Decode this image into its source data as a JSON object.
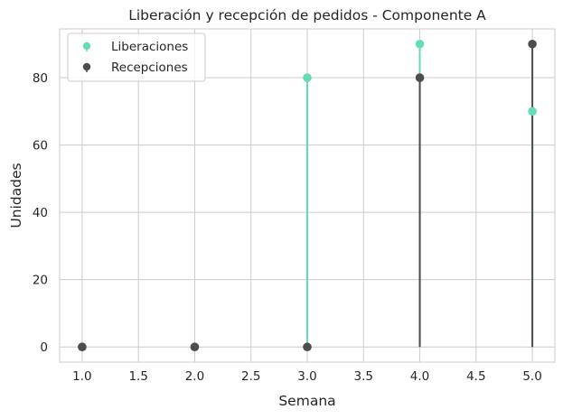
{
  "chart_data": {
    "type": "stem",
    "title": "Liberación y recepción de pedidos - Componente A",
    "xlabel": "Semana",
    "ylabel": "Unidades",
    "xlim": [
      0.8,
      5.2
    ],
    "ylim": [
      -4.5,
      94.5
    ],
    "xticks": [
      1.0,
      1.5,
      2.0,
      2.5,
      3.0,
      3.5,
      4.0,
      4.5,
      5.0
    ],
    "xtick_labels": [
      "1.0",
      "1.5",
      "2.0",
      "2.5",
      "3.0",
      "3.5",
      "4.0",
      "4.5",
      "5.0"
    ],
    "yticks": [
      0,
      20,
      40,
      60,
      80
    ],
    "ytick_labels": [
      "0",
      "20",
      "40",
      "60",
      "80"
    ],
    "grid": true,
    "legend_position": "top-left",
    "series": [
      {
        "name": "Liberaciones",
        "color": "#66dbb8",
        "x": [
          1,
          2,
          3,
          4,
          5
        ],
        "y": [
          0,
          0,
          80,
          90,
          70
        ]
      },
      {
        "name": "Recepciones",
        "color": "#4d4d4d",
        "x": [
          1,
          2,
          3,
          4,
          5
        ],
        "y": [
          0,
          0,
          0,
          80,
          90
        ]
      }
    ]
  }
}
